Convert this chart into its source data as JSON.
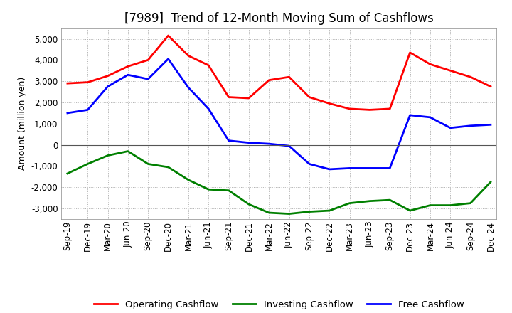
{
  "title": "[7989]  Trend of 12-Month Moving Sum of Cashflows",
  "ylabel": "Amount (million yen)",
  "x_labels": [
    "Sep-19",
    "Dec-19",
    "Mar-20",
    "Jun-20",
    "Sep-20",
    "Dec-20",
    "Mar-21",
    "Jun-21",
    "Sep-21",
    "Dec-21",
    "Mar-22",
    "Jun-22",
    "Sep-22",
    "Dec-22",
    "Mar-23",
    "Jun-23",
    "Sep-23",
    "Dec-23",
    "Mar-24",
    "Jun-24",
    "Sep-24",
    "Dec-24"
  ],
  "operating": [
    2900,
    2950,
    3250,
    3700,
    4000,
    5150,
    4200,
    3750,
    2250,
    2200,
    3050,
    3200,
    2250,
    1950,
    1700,
    1650,
    1700,
    4350,
    3800,
    3500,
    3200,
    2750
  ],
  "investing": [
    -1350,
    -900,
    -500,
    -300,
    -900,
    -1050,
    -1650,
    -2100,
    -2150,
    -2800,
    -3200,
    -3250,
    -3150,
    -3100,
    -2750,
    -2650,
    -2600,
    -3100,
    -2850,
    -2850,
    -2750,
    -1750
  ],
  "free": [
    1500,
    1650,
    2750,
    3300,
    3100,
    4050,
    2700,
    1700,
    200,
    100,
    50,
    -50,
    -900,
    -1150,
    -1100,
    -1100,
    -1100,
    1400,
    1300,
    800,
    900,
    950
  ],
  "ylim": [
    -3500,
    5500
  ],
  "yticks": [
    -3000,
    -2000,
    -1000,
    0,
    1000,
    2000,
    3000,
    4000,
    5000
  ],
  "operating_color": "#ff0000",
  "investing_color": "#008000",
  "free_color": "#0000ff",
  "background_color": "#ffffff",
  "grid_color": "#b0b0b0",
  "title_fontsize": 12,
  "axis_fontsize": 9,
  "tick_fontsize": 8.5,
  "legend_fontsize": 9.5
}
